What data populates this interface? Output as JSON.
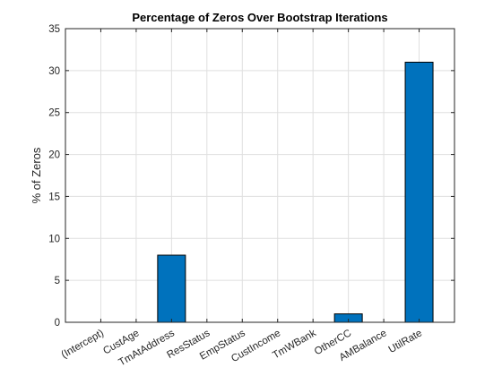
{
  "chart_data": {
    "type": "bar",
    "title": "Percentage of Zeros Over Bootstrap Iterations",
    "xlabel": "",
    "ylabel": "% of Zeros",
    "categories": [
      "(Intercept)",
      "CustAge",
      "TmAtAddress",
      "ResStatus",
      "EmpStatus",
      "CustIncome",
      "TmWBank",
      "OtherCC",
      "AMBalance",
      "UtilRate"
    ],
    "values": [
      0,
      0,
      8,
      0,
      0,
      0,
      0,
      1,
      0,
      31
    ],
    "ylim": [
      0,
      35
    ],
    "yticks": [
      0,
      5,
      10,
      15,
      20,
      25,
      30,
      35
    ],
    "grid": true,
    "bar_color": "#0072bd",
    "bar_edge_color": "#000000"
  }
}
